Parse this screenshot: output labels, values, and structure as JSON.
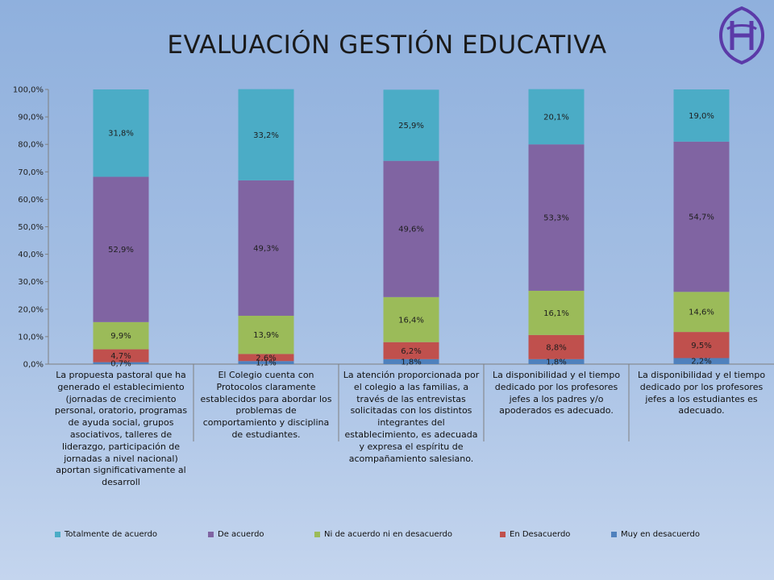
{
  "title": "EVALUACIÓN GESTIÓN EDUCATIVA",
  "logo": {
    "icon": "school-emblem-icon",
    "color": "#5b3aa8"
  },
  "chart_data": {
    "type": "bar",
    "stacked": true,
    "title": "",
    "xlabel": "",
    "ylabel": "",
    "ylim": [
      0,
      100
    ],
    "yticks": [
      "0,0%",
      "10,0%",
      "20,0%",
      "30,0%",
      "40,0%",
      "50,0%",
      "60,0%",
      "70,0%",
      "80,0%",
      "90,0%",
      "100,0%"
    ],
    "grid": false,
    "legend_position": "bottom",
    "categories": [
      "La propuesta pastoral que ha generado el establecimiento (jornadas de crecimiento personal, oratorio, programas de ayuda social, grupos asociativos, talleres de liderazgo, participación de jornadas a nivel nacional) aportan significativamente al desarroll",
      "El Colegio cuenta con Protocolos claramente establecidos para abordar los problemas de comportamiento y disciplina de estudiantes.",
      "La atención proporcionada por el colegio a las familias, a través de las entrevistas solicitadas con los distintos integrantes del establecimiento, es adecuada y expresa el espíritu de acompañamiento salesiano.",
      "La disponibilidad y el tiempo dedicado por los profesores jefes a los padres y/o apoderados es adecuado.",
      "La disponibilidad y el tiempo dedicado por los profesores jefes a los estudiantes es adecuado."
    ],
    "series": [
      {
        "name": "Muy en desacuerdo",
        "color": "#4f81bd",
        "values": [
          0.7,
          1.1,
          1.8,
          1.8,
          2.2
        ],
        "labels": [
          "0,7%",
          "1,1%",
          "1,8%",
          "1,8%",
          "2,2%"
        ]
      },
      {
        "name": "En Desacuerdo",
        "color": "#c0504d",
        "values": [
          4.7,
          2.6,
          6.2,
          8.8,
          9.5
        ],
        "labels": [
          "4,7%",
          "2,6%",
          "6,2%",
          "8,8%",
          "9,5%"
        ]
      },
      {
        "name": "Ni de acuerdo ni en desacuerdo",
        "color": "#9bbb59",
        "values": [
          9.9,
          13.9,
          16.4,
          16.1,
          14.6
        ],
        "labels": [
          "9,9%",
          "13,9%",
          "16,4%",
          "16,1%",
          "14,6%"
        ]
      },
      {
        "name": "De acuerdo",
        "color": "#8064a2",
        "values": [
          52.9,
          49.3,
          49.6,
          53.3,
          54.7
        ],
        "labels": [
          "52,9%",
          "49,3%",
          "49,6%",
          "53,3%",
          "54,7%"
        ]
      },
      {
        "name": "Totalmente de acuerdo",
        "color": "#4bacc6",
        "values": [
          31.8,
          33.2,
          25.9,
          20.1,
          19.0
        ],
        "labels": [
          "31,8%",
          "33,2%",
          "25,9%",
          "20,1%",
          "19,0%"
        ]
      }
    ],
    "legend_order": [
      "Totalmente de acuerdo",
      "De acuerdo",
      "Ni de acuerdo ni en desacuerdo",
      "En Desacuerdo",
      "Muy en desacuerdo"
    ]
  }
}
